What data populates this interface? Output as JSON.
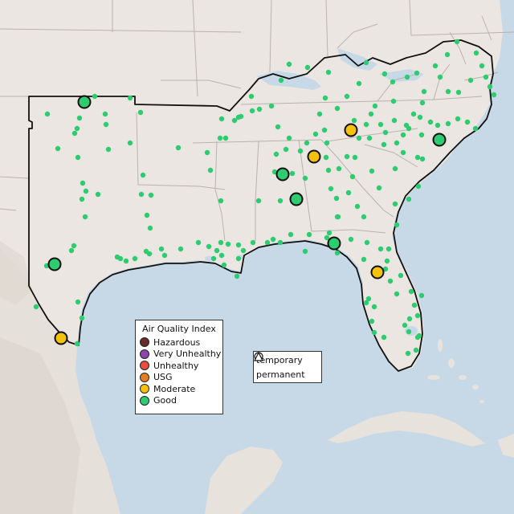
{
  "colors": {
    "water": "#c7d9e7",
    "land": "#ebe6e1",
    "terrain": "#ddd5cf",
    "state_border": "#b9b2ad",
    "region_border": "#111111",
    "good": "#2ecc71",
    "moderate": "#f4c20d",
    "usg": "#e67e22",
    "unhealthy": "#e74c3c",
    "very_unhealthy": "#8e44ad",
    "hazardous": "#6b2b2b"
  },
  "legend": {
    "title": "Air Quality Index",
    "items": [
      {
        "label": "Hazardous",
        "color": "#6b2b2b"
      },
      {
        "label": "Very Unhealthy",
        "color": "#8e44ad"
      },
      {
        "label": "Unhealthy",
        "color": "#e74c3c"
      },
      {
        "label": "USG",
        "color": "#e67e22"
      },
      {
        "label": "Moderate",
        "color": "#f4c20d"
      },
      {
        "label": "Good",
        "color": "#2ecc71"
      }
    ]
  },
  "monitor_type_legend": {
    "temporary": "temporary",
    "permanent": "permanent"
  }
}
